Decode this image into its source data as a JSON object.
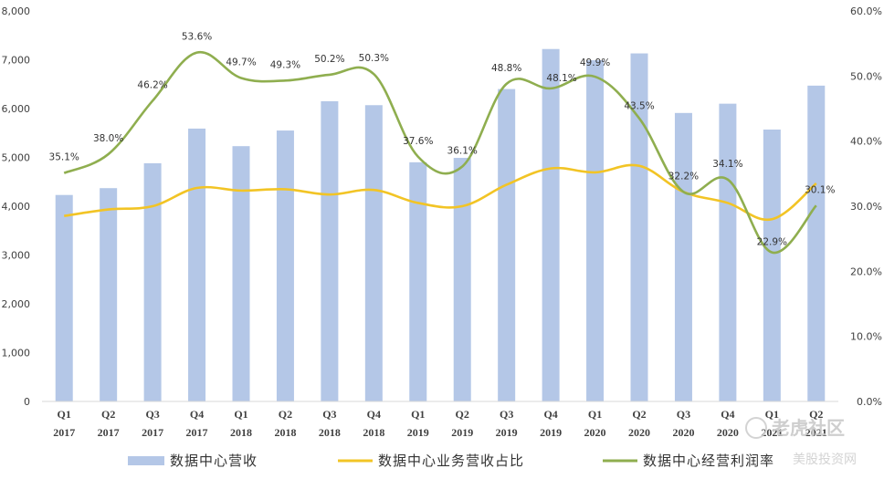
{
  "chart_data": {
    "type": "bar",
    "categories": [
      [
        "Q1",
        "2017"
      ],
      [
        "Q2",
        "2017"
      ],
      [
        "Q3",
        "2017"
      ],
      [
        "Q4",
        "2017"
      ],
      [
        "Q1",
        "2018"
      ],
      [
        "Q2",
        "2018"
      ],
      [
        "Q3",
        "2018"
      ],
      [
        "Q4",
        "2018"
      ],
      [
        "Q1",
        "2019"
      ],
      [
        "Q2",
        "2019"
      ],
      [
        "Q3",
        "2019"
      ],
      [
        "Q4",
        "2019"
      ],
      [
        "Q1",
        "2020"
      ],
      [
        "Q2",
        "2020"
      ],
      [
        "Q3",
        "2020"
      ],
      [
        "Q4",
        "2020"
      ],
      [
        "Q1",
        "2021"
      ],
      [
        "Q2",
        "2021"
      ]
    ],
    "series": [
      {
        "name": "数据中心营收",
        "type": "bar",
        "axis": "left",
        "color": "#b4c7e7",
        "values": [
          4230,
          4370,
          4880,
          5590,
          5230,
          5550,
          6150,
          6070,
          4900,
          4990,
          6400,
          7220,
          6990,
          7130,
          5910,
          6100,
          5570,
          6470
        ]
      },
      {
        "name": "数据中心业务营收占比",
        "type": "line",
        "axis": "right",
        "color": "#f2c425",
        "values": [
          28.5,
          29.5,
          30.0,
          32.8,
          32.4,
          32.6,
          31.8,
          32.5,
          30.5,
          30.0,
          33.3,
          35.8,
          35.2,
          36.2,
          32.2,
          30.5,
          28.0,
          33.5
        ]
      },
      {
        "name": "数据中心经营利润率",
        "type": "line",
        "axis": "right",
        "color": "#8fae4f",
        "values": [
          35.1,
          38.0,
          46.2,
          53.6,
          49.7,
          49.3,
          50.2,
          50.3,
          37.6,
          36.1,
          48.8,
          48.1,
          49.9,
          43.5,
          32.2,
          34.1,
          22.9,
          30.1
        ],
        "labels": [
          "35.1%",
          "38.0%",
          "46.2%",
          "53.6%",
          "49.7%",
          "49.3%",
          "50.2%",
          "50.3%",
          "37.6%",
          "36.1%",
          "48.8%",
          "48.1%",
          "49.9%",
          "43.5%",
          "32.2%",
          "34.1%",
          "22.9%",
          "30.1%"
        ]
      }
    ],
    "y_left": {
      "range": [
        0,
        8000
      ],
      "ticks": [
        "0",
        "1,000",
        "2,000",
        "3,000",
        "4,000",
        "5,000",
        "6,000",
        "7,000",
        "8,000"
      ]
    },
    "y_right": {
      "range": [
        0,
        60
      ],
      "ticks": [
        "0.0%",
        "10.0%",
        "20.0%",
        "30.0%",
        "40.0%",
        "50.0%",
        "60.0%"
      ]
    },
    "grid": false,
    "legend": {
      "position": "bottom",
      "items": [
        "数据中心营收",
        "数据中心业务营收占比",
        "数据中心经营利润率"
      ]
    }
  },
  "watermark": {
    "logo_text": "老虎社区",
    "sub_text": "美股投资网"
  }
}
